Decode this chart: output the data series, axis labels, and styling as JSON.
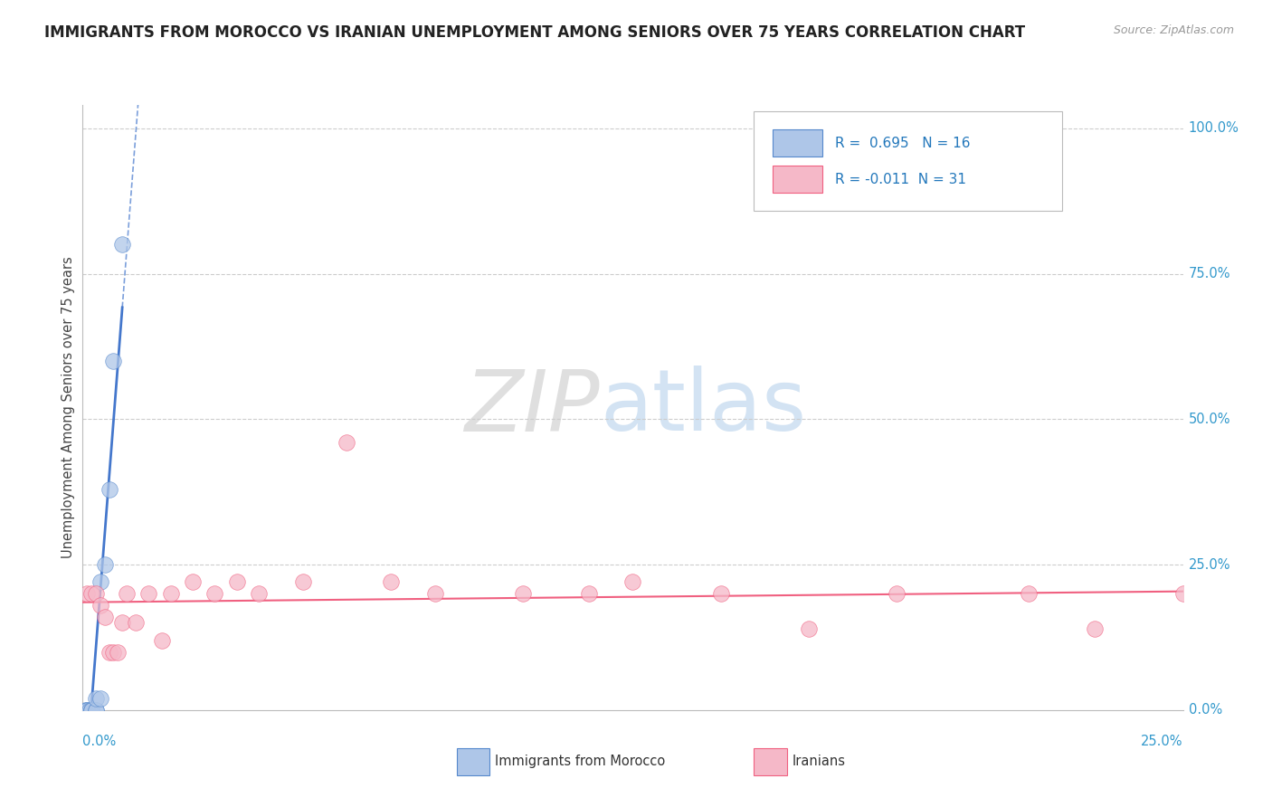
{
  "title": "IMMIGRANTS FROM MOROCCO VS IRANIAN UNEMPLOYMENT AMONG SENIORS OVER 75 YEARS CORRELATION CHART",
  "source": "Source: ZipAtlas.com",
  "ylabel": "Unemployment Among Seniors over 75 years",
  "morocco_R": 0.695,
  "morocco_N": 16,
  "iran_R": -0.011,
  "iran_N": 31,
  "morocco_color": "#aec6e8",
  "iran_color": "#f5b8c8",
  "morocco_edge_color": "#5588cc",
  "iran_edge_color": "#f06080",
  "morocco_line_color": "#4477cc",
  "iran_line_color": "#f06080",
  "xlim": [
    0,
    0.25
  ],
  "ylim": [
    0,
    1.04
  ],
  "ytick_vals": [
    0.0,
    0.25,
    0.5,
    0.75,
    1.0
  ],
  "ytick_labels": [
    "0.0%",
    "25.0%",
    "50.0%",
    "75.0%",
    "100.0%"
  ],
  "xtick_left": "0.0%",
  "xtick_right": "25.0%",
  "legend_morocco": "Immigrants from Morocco",
  "legend_iran": "Iranians",
  "morocco_x": [
    0.001,
    0.001,
    0.002,
    0.002,
    0.003,
    0.003,
    0.004,
    0.004,
    0.004,
    0.005,
    0.005,
    0.006,
    0.007,
    0.008,
    0.009,
    0.012
  ],
  "morocco_y": [
    0.0,
    0.0,
    0.0,
    0.0,
    0.0,
    0.0,
    0.0,
    0.0,
    0.05,
    0.05,
    0.22,
    0.25,
    0.37,
    0.6,
    0.8,
    0.08
  ],
  "iran_x": [
    0.001,
    0.002,
    0.003,
    0.004,
    0.005,
    0.006,
    0.007,
    0.008,
    0.009,
    0.01,
    0.012,
    0.015,
    0.018,
    0.02,
    0.025,
    0.03,
    0.035,
    0.04,
    0.05,
    0.06,
    0.08,
    0.09,
    0.1,
    0.11,
    0.13,
    0.15,
    0.17,
    0.19,
    0.21,
    0.23,
    0.25
  ],
  "iran_y": [
    0.2,
    0.2,
    0.2,
    0.2,
    0.18,
    0.1,
    0.1,
    0.1,
    0.15,
    0.2,
    0.15,
    0.2,
    0.15,
    0.2,
    0.22,
    0.2,
    0.22,
    0.2,
    0.22,
    0.46,
    0.2,
    0.2,
    0.2,
    0.2,
    0.22,
    0.22,
    0.14,
    0.22,
    0.2,
    0.14,
    0.22
  ]
}
